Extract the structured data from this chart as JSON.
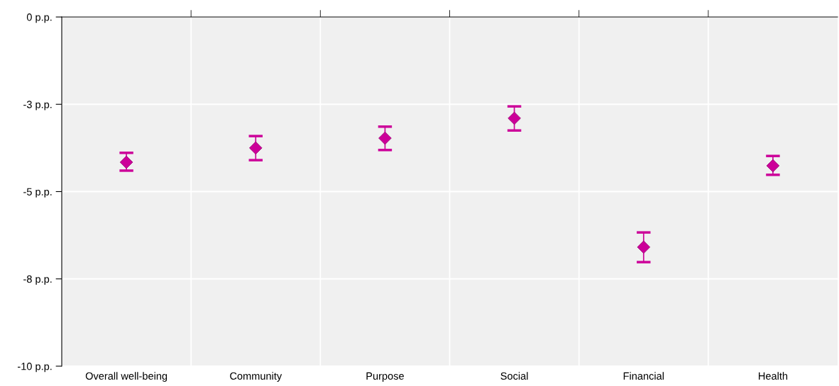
{
  "chart_data": {
    "type": "scatter",
    "categories": [
      "Overall well-being",
      "Community",
      "Purpose",
      "Social",
      "Financial",
      "Health"
    ],
    "series": [
      {
        "color": "#cc0099",
        "values": [
          -4.16,
          -3.75,
          -3.47,
          -2.9,
          -6.59,
          -4.26
        ],
        "errors": [
          [
            -4.4,
            -3.89
          ],
          [
            -4.1,
            -3.41
          ],
          [
            -3.81,
            -3.14
          ],
          [
            -3.25,
            -2.56
          ],
          [
            -7.02,
            -6.17
          ],
          [
            -4.52,
            -3.98
          ]
        ]
      }
    ],
    "ylim": [
      -10,
      0
    ],
    "yticks": [
      {
        "value": 0,
        "label": "0 p.p."
      },
      {
        "value": -2.5,
        "label": "-3 p.p."
      },
      {
        "value": -5,
        "label": "-5 p.p."
      },
      {
        "value": -7.5,
        "label": "-8 p.p."
      },
      {
        "value": -10,
        "label": "-10 p.p."
      }
    ],
    "grid": true,
    "marker": "diamond"
  }
}
